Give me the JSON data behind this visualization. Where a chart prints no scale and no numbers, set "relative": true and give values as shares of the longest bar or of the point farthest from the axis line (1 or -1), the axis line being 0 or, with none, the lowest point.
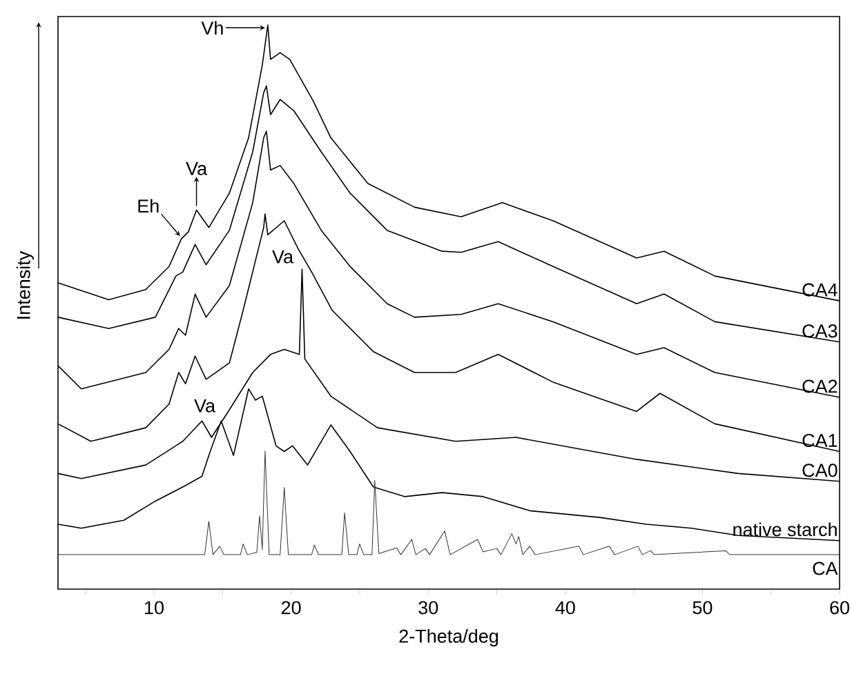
{
  "chart_data": {
    "type": "line",
    "relative": true,
    "xlabel": "2-Theta/deg",
    "ylabel": "Intensity",
    "xlim": [
      3,
      60
    ],
    "xticks": [
      {
        "value": 5,
        "label": null
      },
      10,
      {
        "value": 15,
        "label": null
      },
      20,
      {
        "value": 25,
        "label": null
      },
      30,
      {
        "value": 35,
        "label": null
      },
      40,
      {
        "value": 45,
        "label": null
      },
      50,
      {
        "value": 55,
        "label": null
      },
      60
    ],
    "annotations": [
      {
        "text": "Vh",
        "x": 18.3,
        "y": 1
      },
      {
        "text": "Va",
        "x": 13.1,
        "y": 0.672
      },
      {
        "text": "Eh",
        "x": 12.0,
        "y": 0.621
      },
      {
        "text": "Va",
        "x": 20.8,
        "y": 0.567
      },
      {
        "text": "Va",
        "x": 13.5,
        "y": 0.298
      }
    ],
    "series": [
      {
        "name": "CA4",
        "color": "#000000",
        "x": [
          3,
          6.7,
          9.4,
          11.1,
          12.0,
          12.5,
          13.1,
          14.0,
          15.5,
          16.9,
          17.9,
          18.3,
          18.5,
          19.2,
          19.9,
          21.6,
          22.9,
          25.6,
          29,
          32.4,
          35.4,
          39.1,
          45.2,
          47.2,
          50.9,
          60
        ],
        "values": [
          0.543,
          0.513,
          0.531,
          0.572,
          0.621,
          0.633,
          0.672,
          0.641,
          0.702,
          0.8,
          0.929,
          1,
          0.939,
          0.951,
          0.939,
          0.866,
          0.8,
          0.719,
          0.677,
          0.66,
          0.685,
          0.653,
          0.587,
          0.599,
          0.555,
          0.511
        ]
      },
      {
        "name": "CA3",
        "color": "#000000",
        "x": [
          3,
          6.7,
          10.1,
          11.6,
          12.1,
          13.0,
          13.8,
          15.5,
          17.2,
          18.0,
          18.2,
          18.5,
          19.2,
          20.2,
          22.2,
          24.3,
          27,
          31,
          32.4,
          35.1,
          39.1,
          45.2,
          47.2,
          50.9,
          60
        ],
        "values": [
          0.482,
          0.462,
          0.482,
          0.555,
          0.562,
          0.611,
          0.575,
          0.636,
          0.775,
          0.88,
          0.892,
          0.841,
          0.868,
          0.848,
          0.775,
          0.702,
          0.636,
          0.599,
          0.597,
          0.616,
          0.572,
          0.506,
          0.523,
          0.474,
          0.438
        ]
      },
      {
        "name": "CA2",
        "color": "#000000",
        "x": [
          3,
          4.7,
          9.4,
          11.1,
          11.8,
          12.3,
          13.0,
          13.8,
          15.5,
          17.2,
          18.0,
          18.2,
          18.5,
          19.2,
          20.2,
          22.2,
          24.3,
          27,
          29,
          32.4,
          35.1,
          39.1,
          45.2,
          47.2,
          50.9,
          60
        ],
        "values": [
          0.396,
          0.355,
          0.384,
          0.425,
          0.462,
          0.45,
          0.523,
          0.482,
          0.538,
          0.685,
          0.8,
          0.812,
          0.743,
          0.751,
          0.719,
          0.636,
          0.572,
          0.506,
          0.482,
          0.487,
          0.506,
          0.474,
          0.416,
          0.428,
          0.384,
          0.34
        ]
      },
      {
        "name": "CA1",
        "color": "#000000",
        "x": [
          3,
          5.4,
          9.4,
          11.1,
          11.8,
          12.3,
          13.0,
          13.8,
          15.5,
          16.5,
          17.5,
          18.0,
          18.1,
          18.3,
          19.5,
          20.5,
          21.5,
          23,
          26,
          29,
          32,
          35.1,
          39.1,
          45.2,
          46.9,
          50.9,
          60
        ],
        "values": [
          0.293,
          0.262,
          0.286,
          0.328,
          0.384,
          0.364,
          0.413,
          0.372,
          0.401,
          0.494,
          0.592,
          0.641,
          0.665,
          0.628,
          0.653,
          0.604,
          0.562,
          0.494,
          0.421,
          0.384,
          0.384,
          0.416,
          0.367,
          0.315,
          0.347,
          0.293,
          0.244
        ]
      },
      {
        "name": "CA0",
        "color": "#000000",
        "x": [
          3,
          4.7,
          9.4,
          12.1,
          13.5,
          14.2,
          15.5,
          17.2,
          18.5,
          19.5,
          20.6,
          20.8,
          21.0,
          22.9,
          26.3,
          32,
          36.4,
          45.2,
          52.6,
          60
        ],
        "values": [
          0.205,
          0.196,
          0.22,
          0.262,
          0.298,
          0.269,
          0.318,
          0.384,
          0.416,
          0.425,
          0.416,
          0.567,
          0.408,
          0.342,
          0.286,
          0.262,
          0.269,
          0.23,
          0.205,
          0.191
        ]
      },
      {
        "name": "native starch",
        "color": "#000000",
        "x": [
          3,
          4.7,
          7.8,
          10.1,
          12.1,
          13.5,
          14.0,
          14.9,
          15.8,
          16.9,
          17.4,
          17.9,
          18.9,
          19.5,
          20.1,
          21.2,
          22.9,
          24.3,
          26,
          28.3,
          31,
          34,
          37.4,
          42.5,
          45.9,
          49.2,
          52.6,
          60
        ],
        "values": [
          0.115,
          0.108,
          0.122,
          0.156,
          0.181,
          0.2,
          0.237,
          0.298,
          0.237,
          0.355,
          0.335,
          0.342,
          0.254,
          0.244,
          0.254,
          0.22,
          0.291,
          0.244,
          0.181,
          0.164,
          0.171,
          0.164,
          0.139,
          0.127,
          0.115,
          0.108,
          0.095,
          0.086
        ]
      },
      {
        "name": "CA",
        "color": "#333333",
        "x": [
          3,
          13.7,
          14.0,
          14.3,
          14.8,
          15.1,
          16.3,
          16.5,
          16.8,
          17.5,
          17.7,
          17.9,
          18.1,
          18.4,
          19.2,
          19.5,
          19.8,
          21.5,
          21.7,
          22.0,
          23.7,
          23.9,
          24.2,
          24.8,
          25.0,
          25.3,
          25.9,
          26.1,
          26.4,
          27.7,
          28.0,
          28.8,
          29.1,
          29.8,
          30.1,
          31.2,
          31.6,
          33.6,
          34.0,
          35.0,
          35.3,
          36.1,
          36.4,
          36.6,
          36.9,
          37.4,
          37.8,
          41.0,
          41.3,
          43.2,
          43.6,
          45.3,
          45.6,
          46.2,
          46.5,
          51.7,
          52.0,
          60
        ],
        "values": [
          0.061,
          0.061,
          0.12,
          0.061,
          0.076,
          0.061,
          0.061,
          0.08,
          0.061,
          0.065,
          0.13,
          0.07,
          0.245,
          0.061,
          0.061,
          0.18,
          0.061,
          0.061,
          0.078,
          0.061,
          0.061,
          0.135,
          0.061,
          0.061,
          0.08,
          0.061,
          0.061,
          0.193,
          0.063,
          0.073,
          0.061,
          0.088,
          0.061,
          0.072,
          0.061,
          0.103,
          0.061,
          0.088,
          0.066,
          0.072,
          0.061,
          0.098,
          0.08,
          0.093,
          0.061,
          0.076,
          0.061,
          0.076,
          0.061,
          0.076,
          0.061,
          0.076,
          0.061,
          0.068,
          0.061,
          0.068,
          0.061,
          0.061
        ]
      }
    ]
  }
}
